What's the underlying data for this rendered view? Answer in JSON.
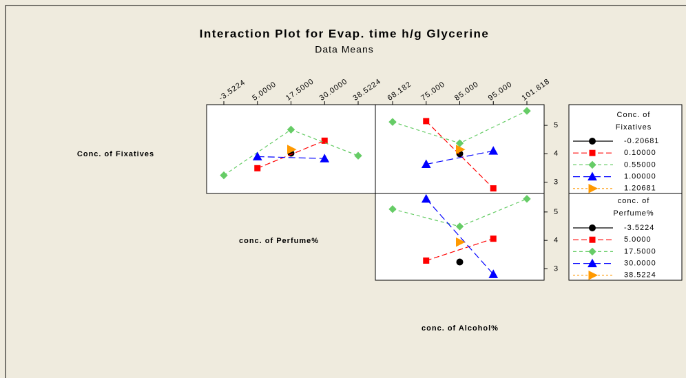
{
  "title": "Interaction Plot for Evap. time h/g Glycerine",
  "subtitle": "Data Means",
  "factors": [
    "Conc. of Fixatives",
    "conc. of Perfume%",
    "conc. of Alcohol%"
  ],
  "chart_data": [
    {
      "type": "line",
      "categories": [
        "-3.5224",
        "5.0000",
        "17.5000",
        "30.0000",
        "38.5224"
      ],
      "ylim": [
        2.6,
        5.73
      ],
      "series": [
        {
          "name": "-0.20681",
          "color": "#000000",
          "marker": "circle",
          "linestyle": "solid",
          "x": [
            "17.5000"
          ],
          "values": [
            4.02
          ]
        },
        {
          "name": "0.10000",
          "color": "#ff0000",
          "marker": "square",
          "linestyle": "dash",
          "x": [
            "5.0000",
            "30.0000"
          ],
          "values": [
            3.49,
            4.46
          ]
        },
        {
          "name": "0.55000",
          "color": "#66cc66",
          "marker": "diamond",
          "linestyle": "shortdash",
          "x": [
            "-3.5224",
            "17.5000",
            "38.5224"
          ],
          "values": [
            3.24,
            4.85,
            3.93
          ]
        },
        {
          "name": "1.00000",
          "color": "#0000ff",
          "marker": "triangle",
          "linestyle": "longdash",
          "x": [
            "5.0000",
            "30.0000"
          ],
          "values": [
            3.9,
            3.83
          ]
        },
        {
          "name": "1.20681",
          "color": "#ff9900",
          "marker": "right-triangle",
          "linestyle": "dot",
          "x": [
            "17.5000"
          ],
          "values": [
            4.15
          ]
        }
      ]
    },
    {
      "type": "line",
      "categories": [
        "68.182",
        "75.000",
        "85.000",
        "95.000",
        "101.818"
      ],
      "ylim": [
        2.6,
        5.73
      ],
      "yticks": [
        3,
        4,
        5
      ],
      "series": [
        {
          "name": "-0.20681",
          "color": "#000000",
          "marker": "circle",
          "linestyle": "solid",
          "x": [
            "85.000"
          ],
          "values": [
            4.0
          ]
        },
        {
          "name": "0.10000",
          "color": "#ff0000",
          "marker": "square",
          "linestyle": "dash",
          "x": [
            "75.000",
            "95.000"
          ],
          "values": [
            5.15,
            2.78
          ]
        },
        {
          "name": "0.55000",
          "color": "#66cc66",
          "marker": "diamond",
          "linestyle": "shortdash",
          "x": [
            "68.182",
            "85.000",
            "101.818"
          ],
          "values": [
            5.12,
            4.37,
            5.51
          ]
        },
        {
          "name": "1.00000",
          "color": "#0000ff",
          "marker": "triangle",
          "linestyle": "longdash",
          "x": [
            "75.000",
            "95.000"
          ],
          "values": [
            3.63,
            4.1
          ]
        },
        {
          "name": "1.20681",
          "color": "#ff9900",
          "marker": "right-triangle",
          "linestyle": "dot",
          "x": [
            "85.000"
          ],
          "values": [
            4.15
          ]
        }
      ]
    },
    {
      "type": "line",
      "categories": [
        "68.182",
        "75.000",
        "85.000",
        "95.000",
        "101.818"
      ],
      "ylim": [
        2.6,
        5.65
      ],
      "yticks": [
        3,
        4,
        5
      ],
      "series": [
        {
          "name": "-3.5224",
          "color": "#000000",
          "marker": "circle",
          "linestyle": "solid",
          "x": [
            "85.000"
          ],
          "values": [
            3.24
          ]
        },
        {
          "name": "5.0000",
          "color": "#ff0000",
          "marker": "square",
          "linestyle": "dash",
          "x": [
            "75.000",
            "95.000"
          ],
          "values": [
            3.29,
            4.06
          ]
        },
        {
          "name": "17.5000",
          "color": "#66cc66",
          "marker": "diamond",
          "linestyle": "shortdash",
          "x": [
            "68.182",
            "85.000",
            "101.818"
          ],
          "values": [
            5.1,
            4.49,
            5.46
          ]
        },
        {
          "name": "30.0000",
          "color": "#0000ff",
          "marker": "triangle",
          "linestyle": "longdash",
          "x": [
            "75.000",
            "95.000"
          ],
          "values": [
            5.46,
            2.81
          ]
        },
        {
          "name": "38.5224",
          "color": "#ff9900",
          "marker": "right-triangle",
          "linestyle": "dot",
          "x": [
            "85.000"
          ],
          "values": [
            3.94
          ]
        }
      ]
    }
  ]
}
